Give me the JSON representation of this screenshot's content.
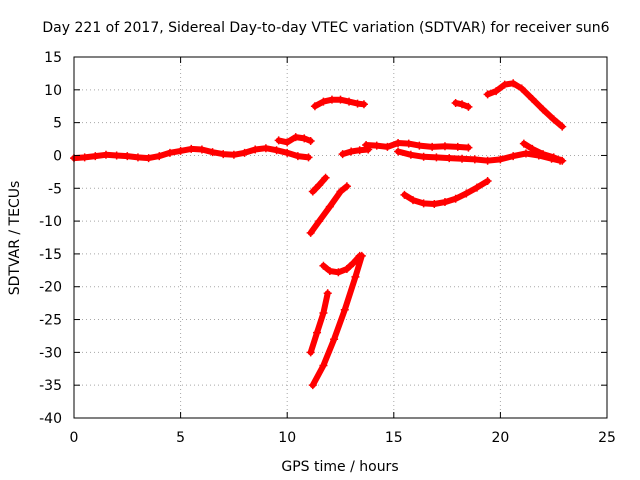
{
  "chart_data": {
    "type": "scatter",
    "title": "Day 221 of 2017, Sidereal Day-to-day VTEC variation (SDTVAR) for receiver sun6",
    "xlabel": "GPS time / hours",
    "ylabel": "SDTVAR / TECUs",
    "xlim": [
      0,
      25
    ],
    "ylim": [
      -40,
      15
    ],
    "xticks": [
      0,
      5,
      10,
      15,
      20,
      25
    ],
    "yticks": [
      15,
      10,
      5,
      0,
      -5,
      -10,
      -15,
      -20,
      -25,
      -30,
      -35,
      -40
    ],
    "grid": true,
    "series_color": "#ff0000",
    "series": [
      {
        "name": "arc-main-band",
        "x": [
          0.0,
          0.5,
          1.0,
          1.5,
          2.0,
          2.5,
          3.0,
          3.5,
          4.0,
          4.5,
          5.0,
          5.5,
          6.0,
          6.5,
          7.0,
          7.5,
          8.0,
          8.5,
          9.0,
          9.5,
          10.0,
          10.5,
          11.0
        ],
        "y": [
          -0.4,
          -0.3,
          -0.1,
          0.1,
          0.0,
          -0.1,
          -0.3,
          -0.4,
          -0.1,
          0.4,
          0.7,
          1.0,
          0.9,
          0.5,
          0.2,
          0.1,
          0.4,
          0.9,
          1.1,
          0.8,
          0.4,
          -0.1,
          -0.3
        ]
      },
      {
        "name": "arc-bump-10h",
        "x": [
          9.6,
          10.0,
          10.4,
          10.8,
          11.1
        ],
        "y": [
          2.3,
          2.0,
          2.8,
          2.6,
          2.2
        ]
      },
      {
        "name": "arc-top-12h",
        "x": [
          11.3,
          11.7,
          12.1,
          12.5,
          12.9,
          13.3,
          13.6
        ],
        "y": [
          7.5,
          8.2,
          8.5,
          8.5,
          8.2,
          7.9,
          7.8
        ]
      },
      {
        "name": "arc-short-11h",
        "x": [
          11.2,
          11.5,
          11.8
        ],
        "y": [
          -5.5,
          -4.5,
          -3.4
        ]
      },
      {
        "name": "arc-steep-a",
        "x": [
          11.1,
          11.5,
          12.0,
          12.5,
          12.8
        ],
        "y": [
          -11.8,
          -10.0,
          -7.8,
          -5.5,
          -4.7
        ]
      },
      {
        "name": "arc-mid-13h",
        "x": [
          12.6,
          13.0,
          13.4,
          13.8
        ],
        "y": [
          0.2,
          0.6,
          0.8,
          0.9
        ]
      },
      {
        "name": "arc-dip-12h",
        "x": [
          11.7,
          12.0,
          12.4,
          12.8,
          13.1,
          13.4
        ],
        "y": [
          -16.8,
          -17.6,
          -17.8,
          -17.3,
          -16.4,
          -15.3
        ]
      },
      {
        "name": "arc-steep-b",
        "x": [
          11.1,
          11.4,
          11.7,
          11.9
        ],
        "y": [
          -30.0,
          -27.0,
          -24.0,
          -21.0
        ]
      },
      {
        "name": "arc-steep-c",
        "x": [
          11.2,
          11.7,
          12.2,
          12.7,
          13.2,
          13.5
        ],
        "y": [
          -35.0,
          -32.0,
          -28.0,
          -23.5,
          -18.5,
          -15.3
        ]
      },
      {
        "name": "arc-band-14h",
        "x": [
          13.7,
          14.2,
          14.7,
          15.2,
          15.7,
          16.2,
          16.8,
          17.4,
          18.0,
          18.5
        ],
        "y": [
          1.6,
          1.5,
          1.3,
          1.9,
          1.8,
          1.5,
          1.3,
          1.4,
          1.3,
          1.2
        ]
      },
      {
        "name": "arc-low-band-15h",
        "x": [
          15.2,
          15.8,
          16.4,
          17.0,
          17.6,
          18.2,
          18.8,
          19.4,
          20.0,
          20.6,
          21.2,
          21.8,
          22.4,
          22.8
        ],
        "y": [
          0.6,
          0.1,
          -0.2,
          -0.3,
          -0.4,
          -0.5,
          -0.6,
          -0.8,
          -0.6,
          -0.1,
          0.3,
          0.0,
          -0.5,
          -0.8
        ]
      },
      {
        "name": "arc-neg-17h",
        "x": [
          15.5,
          15.9,
          16.4,
          16.9,
          17.4,
          17.9,
          18.4,
          18.9,
          19.4
        ],
        "y": [
          -6.0,
          -6.8,
          -7.3,
          -7.4,
          -7.1,
          -6.6,
          -5.8,
          -4.9,
          -3.9
        ]
      },
      {
        "name": "arc-short-18h",
        "x": [
          17.9,
          18.2,
          18.5
        ],
        "y": [
          8.0,
          7.8,
          7.4
        ]
      },
      {
        "name": "arc-top-21h",
        "x": [
          19.4,
          19.8,
          20.2,
          20.6,
          21.0,
          21.5,
          22.0,
          22.5,
          22.9
        ],
        "y": [
          9.3,
          9.8,
          10.8,
          11.0,
          10.2,
          8.6,
          7.0,
          5.5,
          4.4
        ]
      },
      {
        "name": "arc-tail-22h",
        "x": [
          21.1,
          21.5,
          22.0,
          22.5,
          22.9
        ],
        "y": [
          1.8,
          1.0,
          0.2,
          -0.3,
          -0.8
        ]
      }
    ]
  }
}
